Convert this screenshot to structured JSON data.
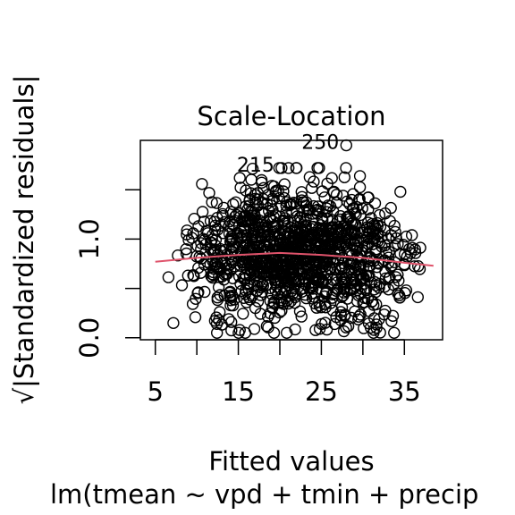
{
  "chart_data": {
    "type": "scatter",
    "title": "Scale-Location",
    "xlabel": "Fitted values",
    "ylabel": "√|Standardized residuals|",
    "subtitle": "lm(tmean ~ vpd + tmin + precip",
    "xlim": [
      3.2,
      39.6
    ],
    "ylim": [
      -0.02,
      2.0
    ],
    "x_ticks": [
      5,
      10,
      15,
      20,
      25,
      30,
      35
    ],
    "x_tick_labels": [
      "5",
      "",
      "15",
      "",
      "25",
      "",
      "35"
    ],
    "y_ticks": [
      0.0,
      0.5,
      1.0,
      1.5
    ],
    "y_tick_labels": [
      "0.0",
      "",
      "1.0",
      ""
    ],
    "point_count_approx": 1200,
    "x_range": [
      4.8,
      38.8
    ],
    "y_range": [
      0.05,
      1.94
    ],
    "smooth_line": {
      "color": "#DF536B",
      "x": [
        5,
        10,
        15,
        20,
        25,
        30,
        35,
        38.5
      ],
      "y": [
        0.77,
        0.81,
        0.84,
        0.86,
        0.84,
        0.81,
        0.76,
        0.73
      ]
    },
    "outliers": [
      {
        "label": "215",
        "x": 20.2,
        "y": 1.72
      },
      {
        "label": "250",
        "x": 28.0,
        "y": 1.95
      }
    ],
    "marker": "open-circle",
    "grid": false
  }
}
